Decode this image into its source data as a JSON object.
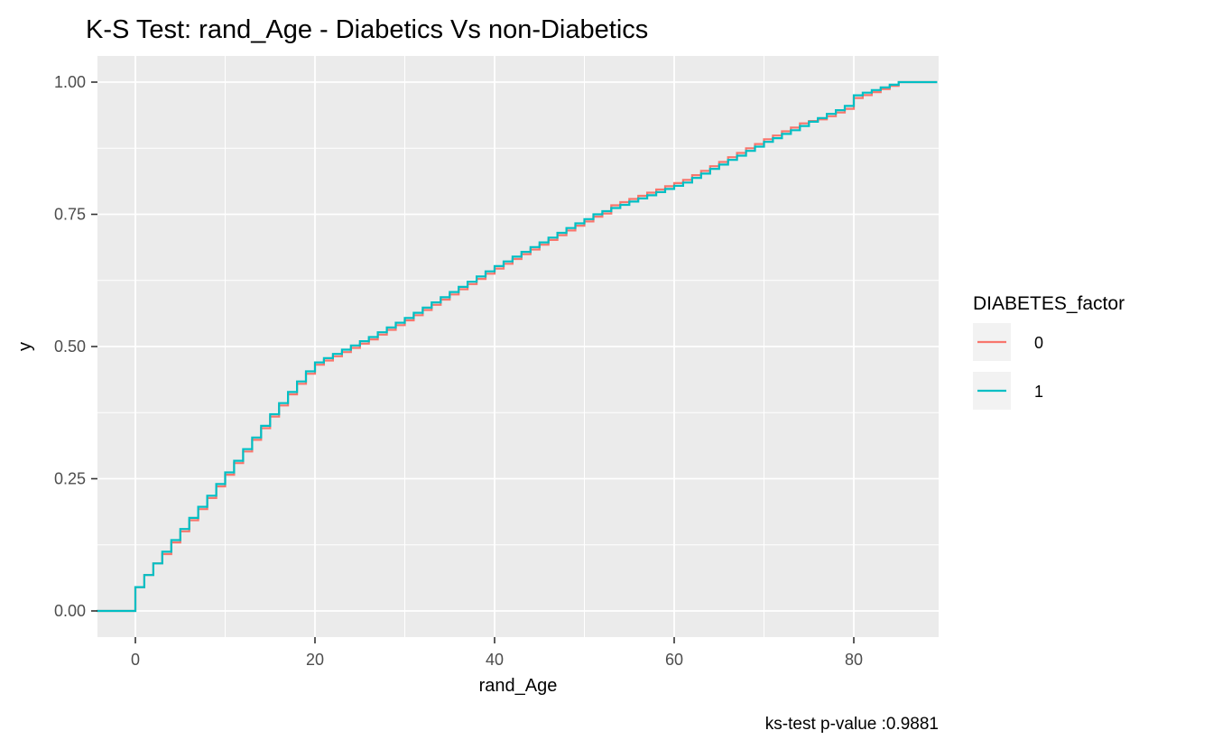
{
  "title": "K-S Test: rand_Age - Diabetics Vs non-Diabetics",
  "caption": "ks-test p-value :0.9881",
  "axes": {
    "x_label": "rand_Age",
    "y_label": "y"
  },
  "legend": {
    "title": "DIABETES_factor",
    "entries": [
      {
        "label": "0",
        "color": "#F8766D"
      },
      {
        "label": "1",
        "color": "#00BFC4"
      }
    ]
  },
  "colors": {
    "panel_background": "#EBEBEB",
    "grid": "#FFFFFF",
    "legend_key_background": "#F2F2F2",
    "tick_mark": "#333333",
    "tick_label": "#4D4D4D",
    "text": "#000000"
  },
  "chart_data": {
    "type": "line",
    "subtype": "ecdf-step",
    "title": "K-S Test: rand_Age - Diabetics Vs non-Diabetics",
    "xlabel": "rand_Age",
    "ylabel": "y",
    "caption": "ks-test p-value :0.9881",
    "xlim": [
      -4.3,
      89.3
    ],
    "ylim": [
      -0.05,
      1.05
    ],
    "grid": "on",
    "legend_position": "right",
    "x_ticks": {
      "values": [
        0,
        20,
        40,
        60,
        80
      ],
      "labels": [
        "0",
        "20",
        "40",
        "60",
        "80"
      ]
    },
    "y_ticks": {
      "values": [
        0,
        0.25,
        0.5,
        0.75,
        1
      ],
      "labels": [
        "0.00",
        "0.25",
        "0.50",
        "0.75",
        "1.00"
      ]
    },
    "x_minor": [
      10,
      30,
      50,
      70
    ],
    "y_minor": [
      0.125,
      0.375,
      0.625,
      0.875
    ],
    "series": [
      {
        "name": "0",
        "color": "#F8766D",
        "points": [
          [
            -4.3,
            0
          ],
          [
            0,
            0.045
          ],
          [
            1,
            0.068
          ],
          [
            2,
            0.09
          ],
          [
            3,
            0.1075
          ],
          [
            4,
            0.1295
          ],
          [
            5,
            0.1505
          ],
          [
            6,
            0.1715
          ],
          [
            7,
            0.1925
          ],
          [
            8,
            0.2135
          ],
          [
            9,
            0.2355
          ],
          [
            10,
            0.2575
          ],
          [
            11,
            0.2795
          ],
          [
            12,
            0.3015
          ],
          [
            13,
            0.3235
          ],
          [
            14,
            0.3455
          ],
          [
            15,
            0.3675
          ],
          [
            16,
            0.3885
          ],
          [
            17,
            0.4095
          ],
          [
            18,
            0.4295
          ],
          [
            19,
            0.4485
          ],
          [
            20,
            0.4655
          ],
          [
            21,
            0.4735
          ],
          [
            22,
            0.4815
          ],
          [
            23,
            0.4895
          ],
          [
            24,
            0.4975
          ],
          [
            25,
            0.5055
          ],
          [
            26,
            0.5135
          ],
          [
            27,
            0.5225
          ],
          [
            28,
            0.5315
          ],
          [
            29,
            0.5405
          ],
          [
            30,
            0.5495
          ],
          [
            31,
            0.5593
          ],
          [
            32,
            0.5691
          ],
          [
            33,
            0.5789
          ],
          [
            34,
            0.5887
          ],
          [
            35,
            0.5985
          ],
          [
            36,
            0.6083
          ],
          [
            37,
            0.6181
          ],
          [
            38,
            0.6279
          ],
          [
            39,
            0.6377
          ],
          [
            40,
            0.6475
          ],
          [
            41,
            0.6565
          ],
          [
            42,
            0.6655
          ],
          [
            43,
            0.6745
          ],
          [
            44,
            0.6835
          ],
          [
            45,
            0.6925
          ],
          [
            46,
            0.7015
          ],
          [
            47,
            0.7105
          ],
          [
            48,
            0.7195
          ],
          [
            49,
            0.7285
          ],
          [
            50,
            0.7365
          ],
          [
            51,
            0.7455
          ],
          [
            52,
            0.7515
          ],
          [
            53,
            0.767
          ],
          [
            54,
            0.773
          ],
          [
            55,
            0.779
          ],
          [
            56,
            0.785
          ],
          [
            57,
            0.791
          ],
          [
            58,
            0.797
          ],
          [
            59,
            0.803
          ],
          [
            60,
            0.809
          ],
          [
            61,
            0.815
          ],
          [
            62,
            0.824
          ],
          [
            63,
            0.832
          ],
          [
            64,
            0.841
          ],
          [
            65,
            0.849
          ],
          [
            66,
            0.858
          ],
          [
            67,
            0.866
          ],
          [
            68,
            0.875
          ],
          [
            69,
            0.883
          ],
          [
            70,
            0.892
          ],
          [
            71,
            0.899
          ],
          [
            72,
            0.907
          ],
          [
            73,
            0.914
          ],
          [
            74,
            0.922
          ],
          [
            75,
            0.9265
          ],
          [
            76,
            0.9295
          ],
          [
            77,
            0.9355
          ],
          [
            78,
            0.9425
          ],
          [
            79,
            0.9495
          ],
          [
            80,
            0.97
          ],
          [
            81,
            0.9755
          ],
          [
            82,
            0.981
          ],
          [
            83,
            0.987
          ],
          [
            84,
            0.993
          ],
          [
            85,
            1.0
          ],
          [
            89.3,
            1.0
          ]
        ]
      },
      {
        "name": "1",
        "color": "#00BFC4",
        "points": [
          [
            -4.3,
            0
          ],
          [
            0,
            0.045
          ],
          [
            1,
            0.068
          ],
          [
            2,
            0.09
          ],
          [
            3,
            0.112
          ],
          [
            4,
            0.134
          ],
          [
            5,
            0.155
          ],
          [
            6,
            0.176
          ],
          [
            7,
            0.197
          ],
          [
            8,
            0.218
          ],
          [
            9,
            0.24
          ],
          [
            10,
            0.262
          ],
          [
            11,
            0.284
          ],
          [
            12,
            0.306
          ],
          [
            13,
            0.328
          ],
          [
            14,
            0.35
          ],
          [
            15,
            0.372
          ],
          [
            16,
            0.393
          ],
          [
            17,
            0.414
          ],
          [
            18,
            0.434
          ],
          [
            19,
            0.453
          ],
          [
            20,
            0.47
          ],
          [
            21,
            0.478
          ],
          [
            22,
            0.486
          ],
          [
            23,
            0.494
          ],
          [
            24,
            0.502
          ],
          [
            25,
            0.51
          ],
          [
            26,
            0.518
          ],
          [
            27,
            0.527
          ],
          [
            28,
            0.536
          ],
          [
            29,
            0.545
          ],
          [
            30,
            0.554
          ],
          [
            31,
            0.5638
          ],
          [
            32,
            0.5736
          ],
          [
            33,
            0.5834
          ],
          [
            34,
            0.5932
          ],
          [
            35,
            0.603
          ],
          [
            36,
            0.6128
          ],
          [
            37,
            0.6226
          ],
          [
            38,
            0.6324
          ],
          [
            39,
            0.6422
          ],
          [
            40,
            0.652
          ],
          [
            41,
            0.661
          ],
          [
            42,
            0.67
          ],
          [
            43,
            0.679
          ],
          [
            44,
            0.688
          ],
          [
            45,
            0.697
          ],
          [
            46,
            0.706
          ],
          [
            47,
            0.715
          ],
          [
            48,
            0.724
          ],
          [
            49,
            0.733
          ],
          [
            50,
            0.741
          ],
          [
            51,
            0.75
          ],
          [
            52,
            0.756
          ],
          [
            53,
            0.762
          ],
          [
            54,
            0.768
          ],
          [
            55,
            0.774
          ],
          [
            56,
            0.78
          ],
          [
            57,
            0.786
          ],
          [
            58,
            0.792
          ],
          [
            59,
            0.798
          ],
          [
            60,
            0.804
          ],
          [
            61,
            0.81
          ],
          [
            62,
            0.819
          ],
          [
            63,
            0.827
          ],
          [
            64,
            0.836
          ],
          [
            65,
            0.844
          ],
          [
            66,
            0.853
          ],
          [
            67,
            0.861
          ],
          [
            68,
            0.87
          ],
          [
            69,
            0.878
          ],
          [
            70,
            0.887
          ],
          [
            71,
            0.894
          ],
          [
            72,
            0.902
          ],
          [
            73,
            0.909
          ],
          [
            74,
            0.917
          ],
          [
            75,
            0.925
          ],
          [
            76,
            0.932
          ],
          [
            77,
            0.94
          ],
          [
            78,
            0.947
          ],
          [
            79,
            0.955
          ],
          [
            80,
            0.975
          ],
          [
            81,
            0.98
          ],
          [
            82,
            0.985
          ],
          [
            83,
            0.99
          ],
          [
            84,
            0.995
          ],
          [
            85,
            1.0
          ],
          [
            89.3,
            1.0
          ]
        ]
      }
    ]
  }
}
